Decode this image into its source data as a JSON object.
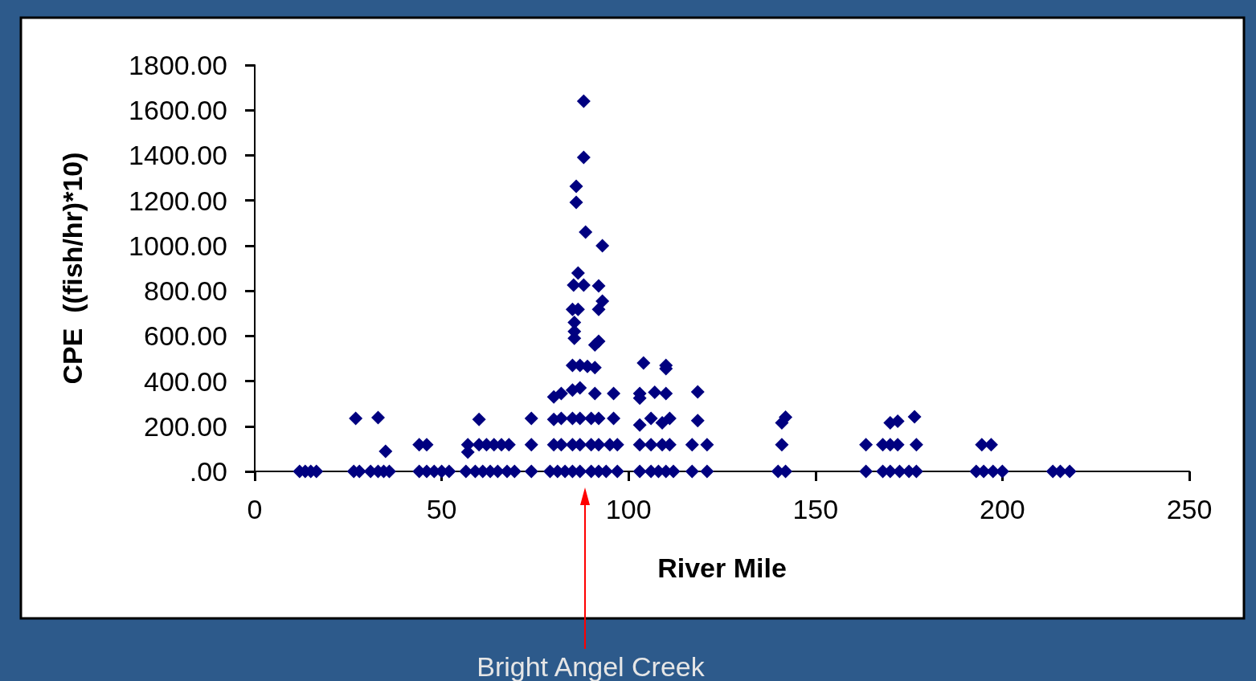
{
  "chart_data": {
    "type": "scatter",
    "xlabel": "River Mile",
    "ylabel": "CPE  ((fish/hr)*10)",
    "xlim": [
      0,
      250
    ],
    "xticks": [
      0,
      50,
      100,
      150,
      200,
      250
    ],
    "ylim": [
      0,
      1800
    ],
    "yticks": [
      {
        "value": 0,
        "label": ".00"
      },
      {
        "value": 200,
        "label": "200.00"
      },
      {
        "value": 400,
        "label": "400.00"
      },
      {
        "value": 600,
        "label": "600.00"
      },
      {
        "value": 800,
        "label": "800.00"
      },
      {
        "value": 1000,
        "label": "1000.00"
      },
      {
        "value": 1200,
        "label": "1200.00"
      },
      {
        "value": 1400,
        "label": "1400.00"
      },
      {
        "value": 1600,
        "label": "1600.00"
      },
      {
        "value": 1800,
        "label": "1800.00"
      }
    ],
    "marker": "diamond",
    "grid": false,
    "annotations": [
      "Bright Angel Creek"
    ],
    "series": [
      {
        "color": "#000080",
        "x": [
          12,
          13.5,
          15,
          16.5,
          26.5,
          28,
          31,
          33,
          34.5,
          36,
          44,
          46,
          48,
          50,
          52,
          56.5,
          59,
          61,
          63,
          65,
          67.5,
          69.5,
          74,
          79,
          81,
          83,
          85,
          87,
          90,
          92,
          94,
          97,
          103,
          106,
          108,
          110,
          112,
          117,
          121,
          140,
          142,
          163.5,
          168,
          170,
          172.5,
          175,
          177,
          193,
          195,
          197.5,
          200,
          213.5,
          215.5,
          218,
          44,
          46,
          57,
          57,
          60,
          62,
          64,
          66,
          68,
          35,
          74,
          80,
          82,
          85,
          87,
          90,
          92,
          95,
          97,
          103,
          106,
          109,
          111,
          117,
          121,
          141,
          163.5,
          168,
          170,
          172,
          177,
          194.5,
          197,
          27,
          33,
          60,
          74,
          80,
          82,
          85,
          87,
          90,
          92,
          96,
          103,
          106,
          109,
          111,
          118.5,
          141,
          142,
          170,
          172,
          176.5,
          80,
          82,
          85,
          87,
          91,
          96,
          103,
          103,
          107,
          110,
          118.5,
          85,
          87,
          89,
          91,
          104,
          110,
          110,
          88,
          88,
          86,
          86,
          88.5,
          93,
          86.5,
          85.3,
          88,
          92,
          93,
          92,
          86.5,
          85,
          85.5,
          85.5,
          85.5,
          92,
          91
        ],
        "values": [
          0,
          0,
          0,
          0,
          0,
          0,
          0,
          0,
          0,
          0,
          0,
          0,
          0,
          0,
          0,
          0,
          0,
          0,
          0,
          0,
          0,
          0,
          0,
          0,
          0,
          0,
          0,
          0,
          0,
          0,
          0,
          0,
          0,
          0,
          0,
          0,
          0,
          0,
          0,
          0,
          0,
          0,
          0,
          0,
          0,
          0,
          0,
          0,
          0,
          0,
          0,
          0,
          0,
          0,
          118,
          118,
          118,
          85,
          118,
          118,
          118,
          118,
          118,
          89,
          118,
          118,
          118,
          118,
          118,
          118,
          118,
          118,
          118,
          118,
          118,
          118,
          118,
          118,
          118,
          118,
          118,
          118,
          118,
          118,
          118,
          118,
          118,
          235,
          238,
          230,
          235,
          230,
          235,
          235,
          235,
          235,
          235,
          235,
          205,
          235,
          215,
          235,
          225,
          215,
          240,
          215,
          222,
          242,
          330,
          345,
          360,
          370,
          345,
          345,
          345,
          325,
          350,
          345,
          352,
          470,
          470,
          465,
          460,
          480,
          470,
          455,
          1640,
          1391,
          1263,
          1192,
          1060,
          1000,
          879,
          825,
          825,
          822,
          754,
          718,
          718,
          718,
          660,
          620,
          590,
          576,
          560
        ]
      }
    ]
  }
}
